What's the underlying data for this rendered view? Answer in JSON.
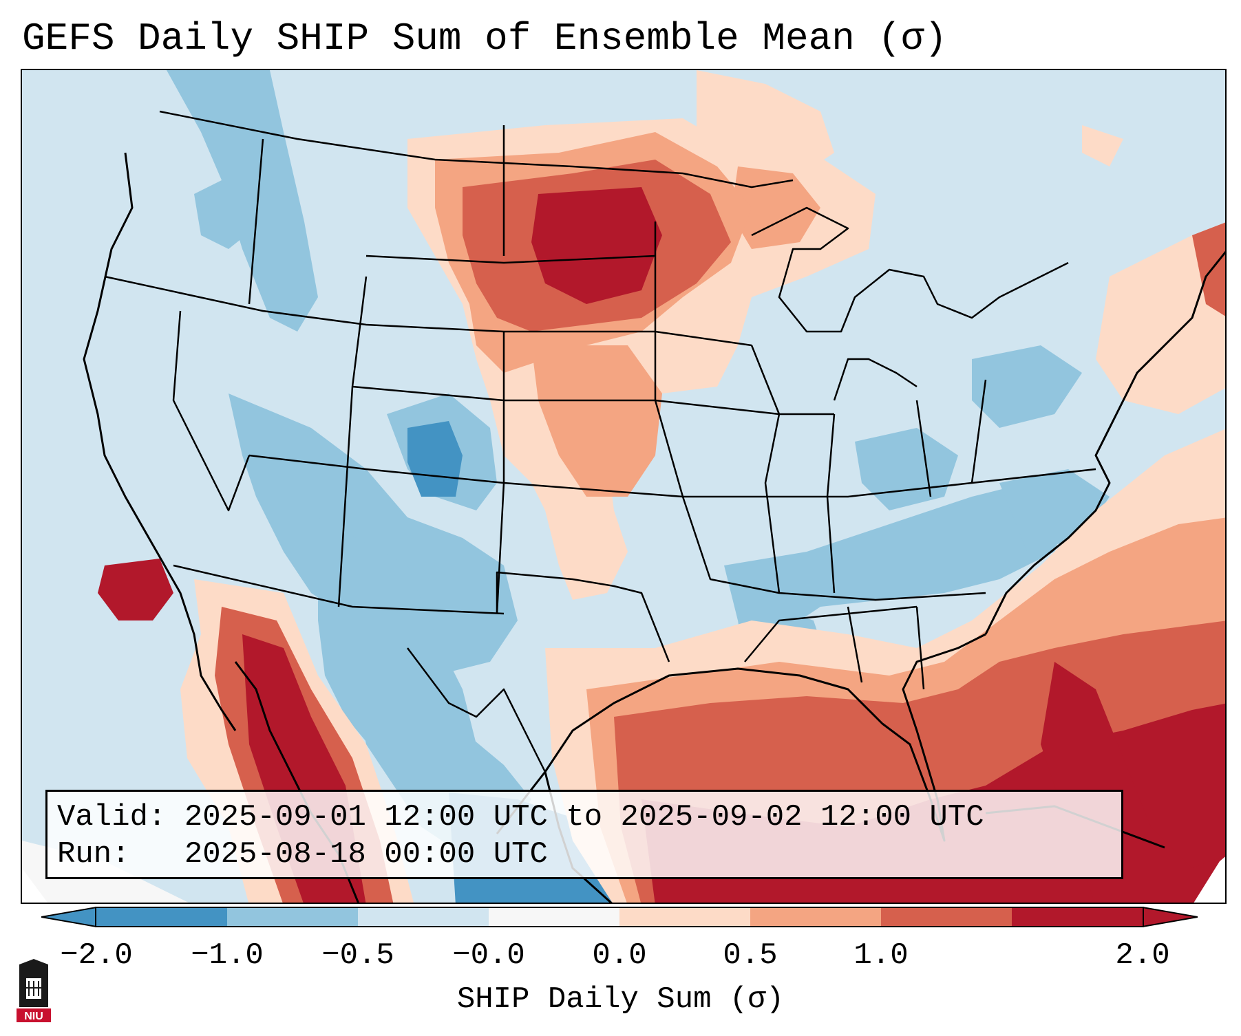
{
  "title": "GEFS Daily SHIP Sum of Ensemble Mean (σ)",
  "info": {
    "valid_label": "Valid:",
    "valid_value": "2025-09-01 12:00 UTC to 2025-09-02 12:00 UTC",
    "run_label": "Run:",
    "run_value": "2025-08-18 00:00 UTC"
  },
  "colorbar": {
    "label": "SHIP Daily Sum (σ)",
    "ticks": [
      "−2.0",
      "−1.0",
      "−0.5",
      "−0.0",
      "0.0",
      "0.5",
      "1.0",
      "2.0"
    ],
    "colors": [
      "#4393c3",
      "#92c5de",
      "#d1e5f0",
      "#f7f7f7",
      "#fddbc7",
      "#f4a582",
      "#d6604d",
      "#b2182b"
    ],
    "extend": "both"
  },
  "map": {
    "region": "Contiguous United States",
    "background_color": "#d1e5f0",
    "land_background": "light-blue",
    "features": [
      "coastlines",
      "state-borders",
      "country-borders",
      "great-lakes"
    ]
  },
  "logo": {
    "text": "NIU"
  }
}
